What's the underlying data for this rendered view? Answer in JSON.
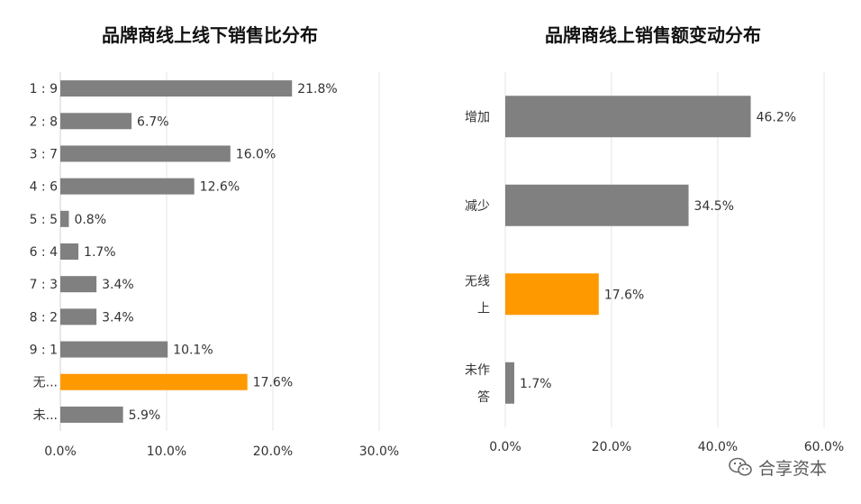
{
  "chart_data": [
    {
      "type": "bar",
      "orientation": "horizontal",
      "title": "品牌商线上线下销售比分布",
      "categories": [
        "1 : 9",
        "2 : 8",
        "3 : 7",
        "4 : 6",
        "5 : 5",
        "6 : 4",
        "7 : 3",
        "8 : 2",
        "9 : 1",
        "无...",
        "未..."
      ],
      "values": [
        21.8,
        6.7,
        16.0,
        12.6,
        0.8,
        1.7,
        3.4,
        3.4,
        10.1,
        17.6,
        5.9
      ],
      "data_labels": [
        "21.8%",
        "6.7%",
        "16.0%",
        "12.6%",
        "0.8%",
        "1.7%",
        "3.4%",
        "3.4%",
        "10.1%",
        "17.6%",
        "5.9%"
      ],
      "highlight_index": 9,
      "xlim": [
        0,
        30
      ],
      "x_ticks": [
        0,
        10,
        20,
        30
      ],
      "x_tick_labels": [
        "0.0%",
        "10.0%",
        "20.0%",
        "30.0%"
      ],
      "grid": true,
      "bar_color": "#808080",
      "highlight_color": "#FF9900"
    },
    {
      "type": "bar",
      "orientation": "horizontal",
      "title": "品牌商线上销售额变动分布",
      "categories": [
        [
          "增加"
        ],
        [
          "减少"
        ],
        [
          "无线",
          "上"
        ],
        [
          "未作",
          "答"
        ]
      ],
      "values": [
        46.2,
        34.5,
        17.6,
        1.7
      ],
      "data_labels": [
        "46.2%",
        "34.5%",
        "17.6%",
        "1.7%"
      ],
      "highlight_index": 2,
      "xlim": [
        0,
        60
      ],
      "x_ticks": [
        0,
        20,
        40,
        60
      ],
      "x_tick_labels": [
        "0.0%",
        "20.0%",
        "40.0%",
        "60.0%"
      ],
      "grid": true,
      "bar_color": "#808080",
      "highlight_color": "#FF9900"
    }
  ],
  "watermark": {
    "text": "合享资本",
    "icon": "wechat-icon"
  }
}
